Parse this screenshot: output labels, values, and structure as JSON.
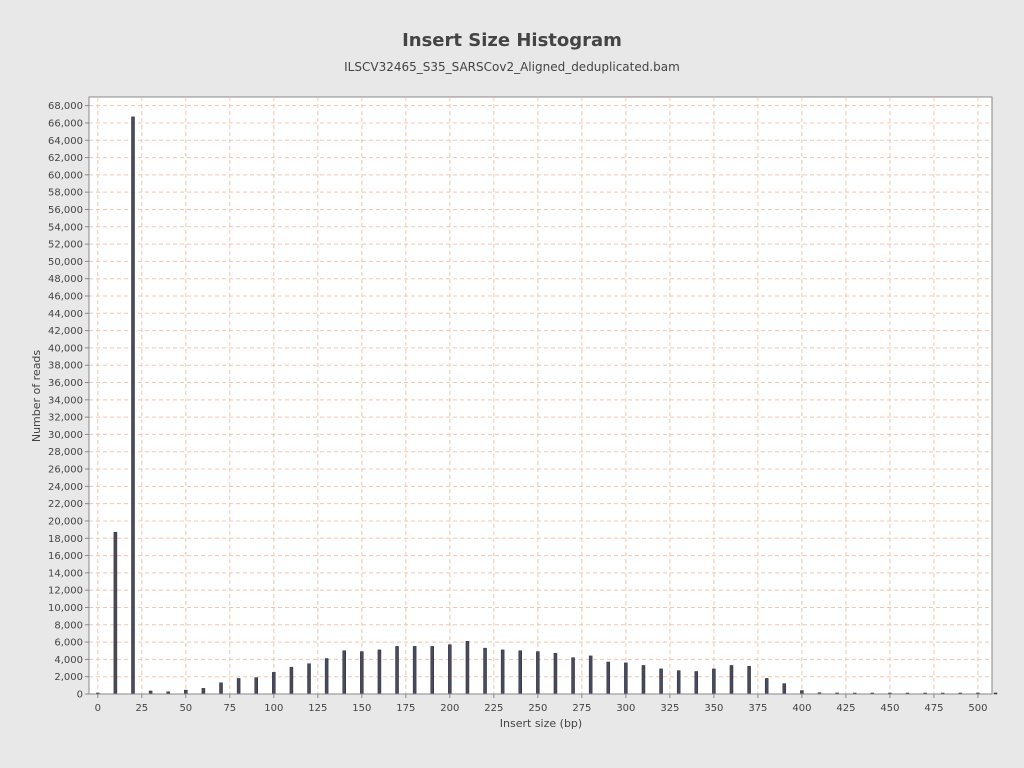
{
  "chart_data": {
    "type": "bar",
    "title": "Insert Size Histogram",
    "subtitle": "ILSCV32465_S35_SARSCov2_Aligned_deduplicated.bam",
    "xlabel": "Insert size (bp)",
    "ylabel": "Number of reads",
    "xlim": [
      -5,
      508
    ],
    "ylim": [
      0,
      69000
    ],
    "x_ticks": [
      0,
      25,
      50,
      75,
      100,
      125,
      150,
      175,
      200,
      225,
      250,
      275,
      300,
      325,
      350,
      375,
      400,
      425,
      450,
      475,
      500
    ],
    "y_ticks": [
      0,
      2000,
      4000,
      6000,
      8000,
      10000,
      12000,
      14000,
      16000,
      18000,
      20000,
      22000,
      24000,
      26000,
      28000,
      30000,
      32000,
      34000,
      36000,
      38000,
      40000,
      42000,
      44000,
      46000,
      48000,
      50000,
      52000,
      54000,
      56000,
      58000,
      60000,
      62000,
      64000,
      66000,
      68000
    ],
    "grid": true,
    "bar_color": "#4a4a5e",
    "grid_color": "#f0c8b0",
    "x": [
      0,
      10,
      20,
      30,
      40,
      50,
      60,
      70,
      80,
      90,
      100,
      110,
      120,
      130,
      140,
      150,
      160,
      170,
      180,
      190,
      200,
      210,
      220,
      230,
      240,
      250,
      260,
      270,
      280,
      290,
      300,
      310,
      320,
      330,
      340,
      350,
      360,
      370,
      380,
      390,
      400,
      410,
      420,
      430,
      440,
      450,
      460,
      470,
      480,
      490,
      500,
      510
    ],
    "values": [
      50,
      18700,
      66700,
      350,
      250,
      450,
      650,
      1300,
      1800,
      1900,
      2500,
      3100,
      3500,
      4100,
      5000,
      4900,
      5100,
      5500,
      5500,
      5500,
      5700,
      6100,
      5300,
      5100,
      5000,
      4900,
      4700,
      4200,
      4400,
      3700,
      3600,
      3300,
      2900,
      2700,
      2600,
      2900,
      3300,
      3200,
      1800,
      1200,
      400,
      150,
      120,
      100,
      100,
      80,
      80,
      80,
      80,
      80,
      80,
      80
    ]
  }
}
